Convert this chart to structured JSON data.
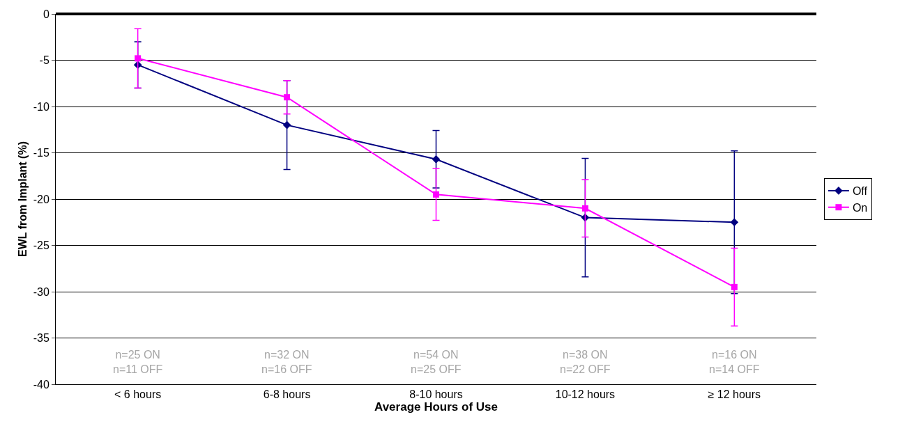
{
  "chart_data": {
    "type": "line",
    "xlabel": "Average Hours of Use",
    "ylabel": "EWL from Implant (%)",
    "categories": [
      "< 6 hours",
      "6-8 hours",
      "8-10 hours",
      "10-12 hours",
      "≥ 12 hours"
    ],
    "series": [
      {
        "name": "Off",
        "color": "#000080",
        "marker": "diamond",
        "values": [
          -5.5,
          -12,
          -15.7,
          -22,
          -22.5
        ],
        "errors": [
          2.5,
          4.8,
          3.1,
          6.4,
          7.7
        ]
      },
      {
        "name": "On",
        "color": "#ff00ff",
        "marker": "square",
        "values": [
          -4.8,
          -9,
          -19.5,
          -21,
          -29.5
        ],
        "errors": [
          3.2,
          1.8,
          2.8,
          3.1,
          4.2
        ]
      }
    ],
    "ylim": [
      -40,
      0
    ],
    "yticks": [
      -40,
      -35,
      -30,
      -25,
      -20,
      -15,
      -10,
      -5,
      0
    ],
    "grid": "y",
    "legend": "right",
    "line_style": "solid",
    "annotations": [
      "n=25 ON\nn=11 OFF",
      "n=32 ON\nn=16 OFF",
      "n=54 ON\nn=25 OFF",
      "n=38 ON\nn=22 OFF",
      "n=16 ON\nn=14 OFF"
    ]
  }
}
